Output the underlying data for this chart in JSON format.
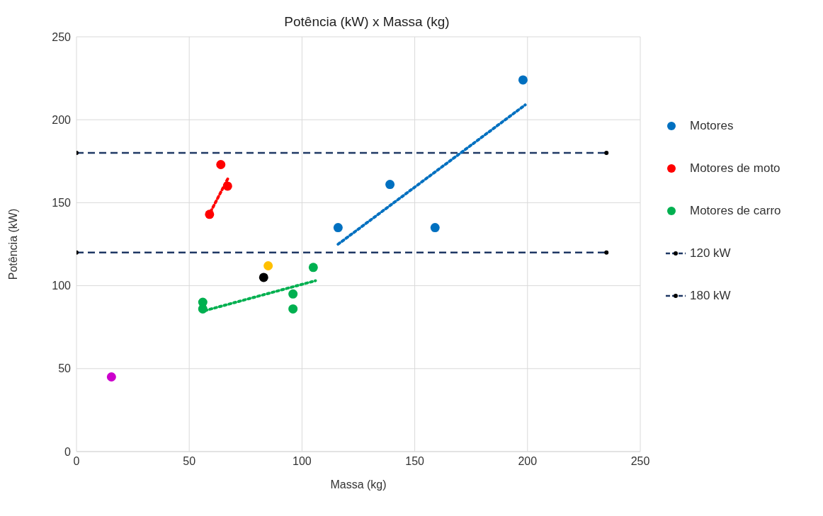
{
  "chart_data": {
    "type": "scatter",
    "title": "Potência (kW) x Massa (kg)",
    "xlabel": "Massa (kg)",
    "ylabel": "Potência (kW)",
    "xlim": [
      0,
      250
    ],
    "xticks": [
      0,
      50,
      100,
      150,
      200,
      250
    ],
    "ylim": [
      0,
      250
    ],
    "yticks": [
      0,
      50,
      100,
      150,
      200,
      250
    ],
    "grid": true,
    "legend": "right",
    "marker": "circle",
    "series": [
      {
        "name": "Motores",
        "color": "#0070c0",
        "x": [
          116,
          139,
          159,
          198
        ],
        "values": [
          135,
          161,
          135,
          224
        ]
      },
      {
        "name": "Motores de moto",
        "color": "#ff0000",
        "x": [
          59,
          64,
          67
        ],
        "values": [
          143,
          173,
          160
        ]
      },
      {
        "name": "Motores de carro",
        "color": "#00b050",
        "x": [
          56,
          56,
          96,
          96,
          105
        ],
        "values": [
          90,
          86,
          95,
          86,
          111
        ]
      },
      {
        "color": "#ffc000",
        "x": [
          85
        ],
        "values": [
          112
        ]
      },
      {
        "color": "#000000",
        "x": [
          83
        ],
        "values": [
          105
        ]
      },
      {
        "color": "#cc00cc",
        "x": [
          15.5
        ],
        "values": [
          45
        ]
      },
      {
        "name": "120 kW",
        "type": "line",
        "color": "#1f3864",
        "line_style": "dashed",
        "x": [
          0,
          235
        ],
        "values": [
          120,
          120
        ]
      },
      {
        "name": "180 kW",
        "type": "line",
        "color": "#1f3864",
        "line_style": "dashed",
        "x": [
          0,
          235
        ],
        "values": [
          180,
          180
        ]
      },
      {
        "type": "line",
        "color": "#0070c0",
        "line_style": "dotted",
        "marker": "none",
        "x": [
          116,
          199
        ],
        "values": [
          125,
          209
        ]
      },
      {
        "type": "line",
        "color": "#ff0000",
        "line_style": "dotted",
        "marker": "none",
        "x": [
          58.5,
          67.3
        ],
        "values": [
          142,
          165
        ]
      },
      {
        "type": "line",
        "color": "#00b050",
        "line_style": "dotted",
        "marker": "none",
        "x": [
          57,
          106
        ],
        "values": [
          85,
          103
        ]
      }
    ]
  }
}
